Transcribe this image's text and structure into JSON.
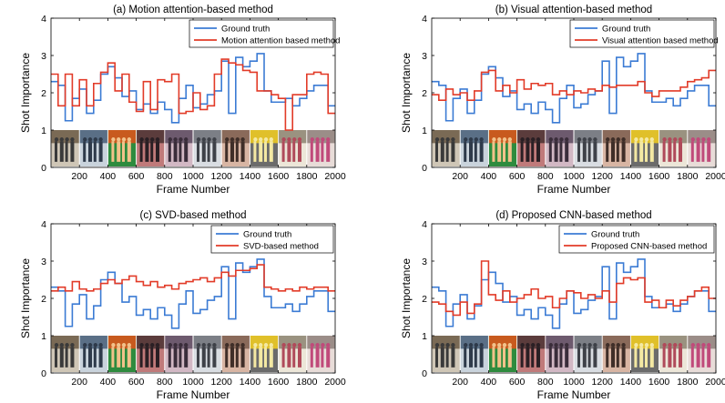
{
  "chart_data": [
    {
      "type": "line",
      "title": "(a) Motion attention-based method",
      "xlabel": "Frame Number",
      "ylabel": "Shot Importance",
      "xlim": [
        0,
        2000
      ],
      "ylim": [
        0,
        4
      ],
      "xticks": [
        200,
        400,
        600,
        800,
        1000,
        1200,
        1400,
        1600,
        1800,
        2000
      ],
      "yticks": [
        0,
        1,
        2,
        3,
        4
      ],
      "legend_position": "top-right",
      "shot_boundaries": [
        0,
        50,
        100,
        150,
        200,
        250,
        300,
        350,
        400,
        450,
        500,
        550,
        600,
        650,
        700,
        750,
        800,
        850,
        900,
        950,
        1000,
        1050,
        1100,
        1150,
        1200,
        1250,
        1300,
        1350,
        1400,
        1450,
        1500,
        1550,
        1600,
        1650,
        1700,
        1750,
        1800,
        1850,
        1900,
        1950,
        2000
      ],
      "series": [
        {
          "name": "Ground truth",
          "color": "#3b7bd4",
          "values": [
            2.3,
            2.2,
            1.25,
            1.85,
            2.1,
            1.45,
            1.8,
            2.5,
            2.7,
            2.4,
            1.9,
            2.05,
            1.55,
            1.7,
            1.45,
            1.75,
            1.55,
            1.2,
            1.85,
            2.2,
            1.6,
            1.7,
            1.95,
            2.05,
            2.85,
            1.45,
            2.95,
            2.7,
            2.85,
            3.05,
            2.05,
            1.75,
            1.75,
            1.85,
            1.65,
            1.85,
            2.05,
            2.2,
            2.2,
            1.65
          ]
        },
        {
          "name": "Motion attention based method",
          "color": "#e23b28",
          "values": [
            2.5,
            1.65,
            2.5,
            1.65,
            2.35,
            1.65,
            2.25,
            2.55,
            2.8,
            2.05,
            2.5,
            1.75,
            1.5,
            2.3,
            1.55,
            2.35,
            2.3,
            2.5,
            1.45,
            1.5,
            2.0,
            1.55,
            1.65,
            2.5,
            2.9,
            2.8,
            2.75,
            2.6,
            2.55,
            2.05,
            2.05,
            1.95,
            1.85,
            1.0,
            1.95,
            1.95,
            2.5,
            2.55,
            2.5,
            1.45
          ]
        }
      ]
    },
    {
      "type": "line",
      "title": "(b) Visual attention-based method",
      "xlabel": "Frame Number",
      "ylabel": "Shot Importance",
      "xlim": [
        0,
        2000
      ],
      "ylim": [
        0,
        4
      ],
      "xticks": [
        200,
        400,
        600,
        800,
        1000,
        1200,
        1400,
        1600,
        1800,
        2000
      ],
      "yticks": [
        0,
        1,
        2,
        3,
        4
      ],
      "legend_position": "top-right",
      "series": [
        {
          "name": "Ground truth",
          "color": "#3b7bd4",
          "values": [
            2.3,
            2.2,
            1.25,
            1.85,
            2.1,
            1.45,
            1.8,
            2.5,
            2.7,
            2.4,
            1.9,
            2.05,
            1.55,
            1.7,
            1.45,
            1.75,
            1.55,
            1.2,
            1.85,
            2.2,
            1.6,
            1.7,
            1.95,
            2.05,
            2.85,
            1.45,
            2.95,
            2.7,
            2.85,
            3.05,
            2.05,
            1.75,
            1.75,
            1.85,
            1.65,
            1.85,
            2.05,
            2.2,
            2.2,
            1.65
          ]
        },
        {
          "name": "Visual attention based method",
          "color": "#e23b28",
          "values": [
            1.95,
            1.8,
            2.1,
            1.95,
            2.0,
            1.8,
            2.05,
            2.55,
            2.6,
            2.05,
            2.2,
            2.0,
            2.35,
            2.1,
            2.25,
            2.2,
            2.25,
            1.95,
            2.05,
            1.95,
            2.05,
            2.0,
            2.1,
            2.05,
            2.2,
            2.15,
            2.2,
            2.2,
            2.2,
            2.3,
            2.0,
            1.9,
            2.05,
            2.05,
            2.05,
            2.15,
            2.3,
            2.35,
            2.4,
            2.6
          ]
        }
      ]
    },
    {
      "type": "line",
      "title": "(c) SVD-based method",
      "xlabel": "Frame Number",
      "ylabel": "Shot Importance",
      "xlim": [
        0,
        2000
      ],
      "ylim": [
        0,
        4
      ],
      "xticks": [
        200,
        400,
        600,
        800,
        1000,
        1200,
        1400,
        1600,
        1800,
        2000
      ],
      "yticks": [
        0,
        1,
        2,
        3,
        4
      ],
      "legend_position": "top-right",
      "series": [
        {
          "name": "Ground truth",
          "color": "#3b7bd4",
          "values": [
            2.3,
            2.2,
            1.25,
            1.85,
            2.1,
            1.45,
            1.8,
            2.5,
            2.7,
            2.4,
            1.9,
            2.05,
            1.55,
            1.7,
            1.45,
            1.75,
            1.55,
            1.2,
            1.85,
            2.2,
            1.6,
            1.7,
            1.95,
            2.05,
            2.85,
            1.45,
            2.95,
            2.7,
            2.85,
            3.05,
            2.05,
            1.75,
            1.75,
            1.85,
            1.65,
            1.85,
            2.05,
            2.2,
            2.2,
            1.65
          ]
        },
        {
          "name": "SVD-based method",
          "color": "#e23b28",
          "values": [
            2.2,
            2.3,
            2.2,
            2.45,
            2.25,
            2.2,
            2.25,
            2.4,
            2.5,
            2.4,
            2.5,
            2.6,
            2.45,
            2.35,
            2.45,
            2.3,
            2.35,
            2.25,
            2.4,
            2.45,
            2.5,
            2.55,
            2.45,
            2.55,
            2.7,
            2.6,
            2.75,
            2.75,
            2.8,
            2.9,
            2.3,
            2.25,
            2.2,
            2.25,
            2.2,
            2.3,
            2.25,
            2.3,
            2.3,
            2.2
          ]
        }
      ]
    },
    {
      "type": "line",
      "title": "(d) Proposed CNN-based method",
      "xlabel": "Frame Number",
      "ylabel": "Shot Importance",
      "xlim": [
        0,
        2000
      ],
      "ylim": [
        0,
        4
      ],
      "xticks": [
        200,
        400,
        600,
        800,
        1000,
        1200,
        1400,
        1600,
        1800,
        2000
      ],
      "yticks": [
        0,
        1,
        2,
        3,
        4
      ],
      "legend_position": "top-right",
      "series": [
        {
          "name": "Ground truth",
          "color": "#3b7bd4",
          "values": [
            2.3,
            2.2,
            1.25,
            1.85,
            2.1,
            1.45,
            1.8,
            2.5,
            2.7,
            2.4,
            1.9,
            2.05,
            1.55,
            1.7,
            1.45,
            1.75,
            1.55,
            1.2,
            1.85,
            2.2,
            1.6,
            1.7,
            1.95,
            2.05,
            2.85,
            1.45,
            2.95,
            2.7,
            2.85,
            3.05,
            2.05,
            1.75,
            1.75,
            1.85,
            1.65,
            1.85,
            2.05,
            2.2,
            2.2,
            1.65
          ]
        },
        {
          "name": "Proposed CNN-based method",
          "color": "#e23b28",
          "values": [
            1.9,
            1.85,
            1.65,
            1.55,
            1.9,
            1.6,
            1.85,
            3.0,
            2.1,
            1.95,
            2.2,
            1.9,
            2.0,
            2.1,
            2.25,
            2.0,
            2.05,
            1.75,
            2.0,
            2.2,
            2.15,
            2.0,
            2.1,
            2.0,
            2.2,
            1.9,
            2.4,
            2.55,
            2.5,
            2.55,
            1.9,
            1.95,
            1.75,
            1.95,
            1.8,
            1.95,
            2.05,
            2.2,
            2.3,
            2.0
          ]
        }
      ]
    }
  ],
  "thumbnail_palettes": [
    [
      "#7a6a55",
      "#cfc6b6",
      "#3a3a3a"
    ],
    [
      "#5a6f86",
      "#c9d3dc",
      "#2e3a4a"
    ],
    [
      "#c85a1e",
      "#2e8b3e",
      "#f2c28a"
    ],
    [
      "#5b3c3c",
      "#c07a7a",
      "#2a1f24"
    ],
    [
      "#6d5a6e",
      "#d2b8c4",
      "#3a2d3a"
    ],
    [
      "#7c7f86",
      "#d9dde2",
      "#3e4148"
    ],
    [
      "#8a6a5a",
      "#d8b5a3",
      "#3f2e28"
    ],
    [
      "#e0c02a",
      "#6b6b6b",
      "#f4e9a3"
    ],
    [
      "#9a9280",
      "#ece6d8",
      "#b04a5a"
    ],
    [
      "#9b8d88",
      "#e8dcd8",
      "#c04a7a"
    ]
  ]
}
